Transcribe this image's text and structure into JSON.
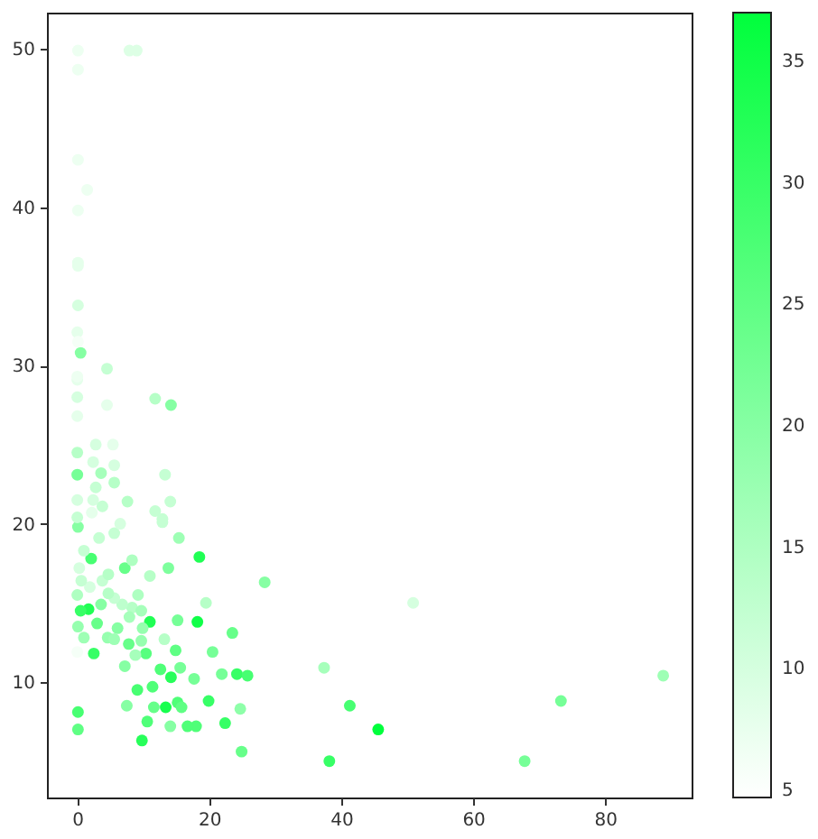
{
  "chart_data": {
    "type": "scatter",
    "marker": "circle",
    "xlim": [
      -4.6,
      93.1
    ],
    "xticks": [
      0,
      20,
      40,
      60,
      80
    ],
    "ylim": [
      2.7,
      52.3
    ],
    "yticks": [
      10,
      20,
      30,
      40,
      50
    ],
    "clim": [
      4.7,
      37
    ],
    "cticks": [
      5,
      10,
      15,
      20,
      25,
      30,
      35
    ],
    "series": [
      {
        "x": [
          18.5,
          18.2,
          28.4,
          23.5,
          19.5,
          15.2,
          13.8,
          15.4,
          12.9,
          11.0,
          7.2,
          2.1,
          2.5,
          0.1,
          0.1,
          9.8,
          24.9,
          22.4,
          18.0,
          16.7,
          14.1,
          10.6,
          7.5,
          13.4,
          11.6,
          15.2,
          15.8,
          19.9,
          24.7,
          9.1,
          11.4,
          14.2,
          17.7,
          21.9,
          24.2,
          25.8,
          20.5,
          14.9,
          15.6,
          12.6,
          7.2,
          10.4,
          13.2,
          7.8,
          11.0,
          6.1,
          4.6,
          3.0,
          1.7,
          0.5,
          0.1,
          1.0,
          8.3,
          9.7,
          9.2,
          6.8,
          5.6,
          7.9,
          9.9,
          9.7,
          8.8,
          5.6,
          4.7,
          3.8,
          3.6,
          1.9,
          0.6,
          0.3,
          1.0,
          0.1,
          3.3,
          5.6,
          6.5,
          8.3,
          4.7,
          0.0,
          14.2,
          11.8,
          4.5,
          4.5,
          0.5,
          0.1,
          0.1,
          0.0,
          0.0,
          0.0,
          0.0,
          0.0,
          0.0,
          2.8,
          5.4,
          13.3,
          7.6,
          14.1,
          11.8,
          12.9,
          3.6,
          5.6,
          2.4,
          2.8,
          5.6,
          0.0,
          2.4,
          3.8,
          0.0,
          2.2,
          0.1,
          0.1,
          7.9,
          9.0,
          0.1,
          1.5,
          0.1,
          0.1,
          0.1,
          0.0,
          0.0,
          50.9,
          37.4,
          41.3,
          45.6,
          38.2,
          67.8,
          73.3,
          88.8
        ],
        "values": [
          17.9,
          13.8,
          16.3,
          13.1,
          15.0,
          13.9,
          17.2,
          19.1,
          20.1,
          16.7,
          17.2,
          17.8,
          11.8,
          8.1,
          7.0,
          6.3,
          5.6,
          7.4,
          7.2,
          7.2,
          7.2,
          7.5,
          8.5,
          8.4,
          8.4,
          8.7,
          8.4,
          8.8,
          8.3,
          9.5,
          9.7,
          10.3,
          10.2,
          10.5,
          10.5,
          10.4,
          11.9,
          12.0,
          10.9,
          10.8,
          11.0,
          11.8,
          12.7,
          12.4,
          13.8,
          13.4,
          12.8,
          13.7,
          14.6,
          14.5,
          13.5,
          12.8,
          14.7,
          14.5,
          15.5,
          14.9,
          15.3,
          14.1,
          13.4,
          12.6,
          11.7,
          12.7,
          15.6,
          16.4,
          14.9,
          16.0,
          16.4,
          17.2,
          18.3,
          19.8,
          19.1,
          19.4,
          20.0,
          17.7,
          16.8,
          11.9,
          27.5,
          27.9,
          29.8,
          27.5,
          30.8,
          36.5,
          33.8,
          32.1,
          29.1,
          28.0,
          26.8,
          24.5,
          23.1,
          25.0,
          25.0,
          23.1,
          21.4,
          21.4,
          20.8,
          20.3,
          23.2,
          23.7,
          23.9,
          22.3,
          22.6,
          21.5,
          21.5,
          21.1,
          20.4,
          20.7,
          49.9,
          48.7,
          49.9,
          49.9,
          43.0,
          41.1,
          39.8,
          36.3,
          31.5,
          29.3,
          15.5,
          15.0,
          10.9,
          8.5,
          7.0,
          5.0,
          5.0,
          8.8,
          10.4
        ],
        "cvalues": [
          33,
          35,
          20,
          24,
          14,
          22,
          21,
          17,
          12,
          14,
          24,
          28,
          30,
          28,
          25,
          32,
          24,
          30,
          27,
          27,
          20,
          27,
          20,
          34,
          24,
          27,
          25,
          30,
          19,
          28,
          27,
          32,
          22,
          22,
          30,
          28,
          22,
          25,
          22,
          27,
          20,
          26,
          14,
          24,
          33,
          20,
          18,
          24,
          33,
          30,
          18,
          17,
          14,
          16,
          15,
          13,
          12,
          16,
          18,
          18,
          16,
          17,
          14,
          12,
          20,
          10,
          12,
          10,
          12,
          20,
          12,
          12,
          10,
          15,
          14,
          6,
          20,
          14,
          12,
          8,
          20,
          8,
          10,
          8,
          8,
          10,
          8,
          14,
          22,
          10,
          8,
          12,
          14,
          12,
          12,
          12,
          16,
          10,
          10,
          12,
          14,
          10,
          10,
          12,
          12,
          8,
          7,
          7,
          9,
          9,
          7,
          7,
          7,
          8,
          6,
          7,
          15,
          10,
          16,
          28,
          37,
          30,
          22,
          22,
          17
        ]
      }
    ]
  }
}
